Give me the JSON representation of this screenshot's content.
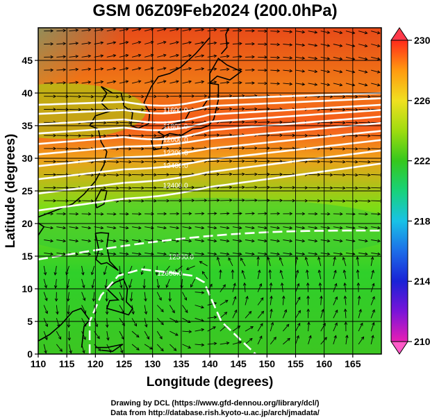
{
  "title": "GSM 06Z09Feb2024 (200.0hPa)",
  "xlabel": "Longitude (degrees)",
  "ylabel": "Latitude  (degrees)",
  "credit_line1": "Drawing by DCL (https://www.gfd-dennou.org/library/dcl/)",
  "credit_line2": "Data from http://database.rish.kyoto-u.ac.jp/arch/jmadata/",
  "x_ticks": [
    "110",
    "115",
    "120",
    "125",
    "130",
    "135",
    "140",
    "145",
    "150",
    "155",
    "160",
    "165"
  ],
  "y_ticks": [
    "0",
    "5",
    "10",
    "15",
    "20",
    "25",
    "30",
    "35",
    "40",
    "45"
  ],
  "colorbar_ticks": [
    "210",
    "214",
    "218",
    "222",
    "226",
    "230"
  ],
  "contour_labels": [
    "11600.0",
    "11800.0",
    "12000.0",
    "12200.0",
    "12400.0",
    "12500.0",
    "12600.0"
  ],
  "colors": {
    "background": "#ffffff",
    "contour": "#ffffff",
    "coast": "#000000",
    "vector": "#000000"
  },
  "chart_data": {
    "type": "heatmap",
    "title": "GSM 06Z09Feb2024 (200.0hPa)",
    "xlabel": "Longitude (degrees)",
    "ylabel": "Latitude  (degrees)",
    "xlim": [
      110,
      170
    ],
    "ylim": [
      0,
      50
    ],
    "colorbar_range": [
      210,
      230
    ],
    "colorbar_ticks": [
      210,
      214,
      218,
      222,
      226,
      230
    ],
    "grid": true,
    "contour_levels": [
      11600,
      11800,
      12000,
      12200,
      12400,
      12500,
      12600
    ]
  }
}
